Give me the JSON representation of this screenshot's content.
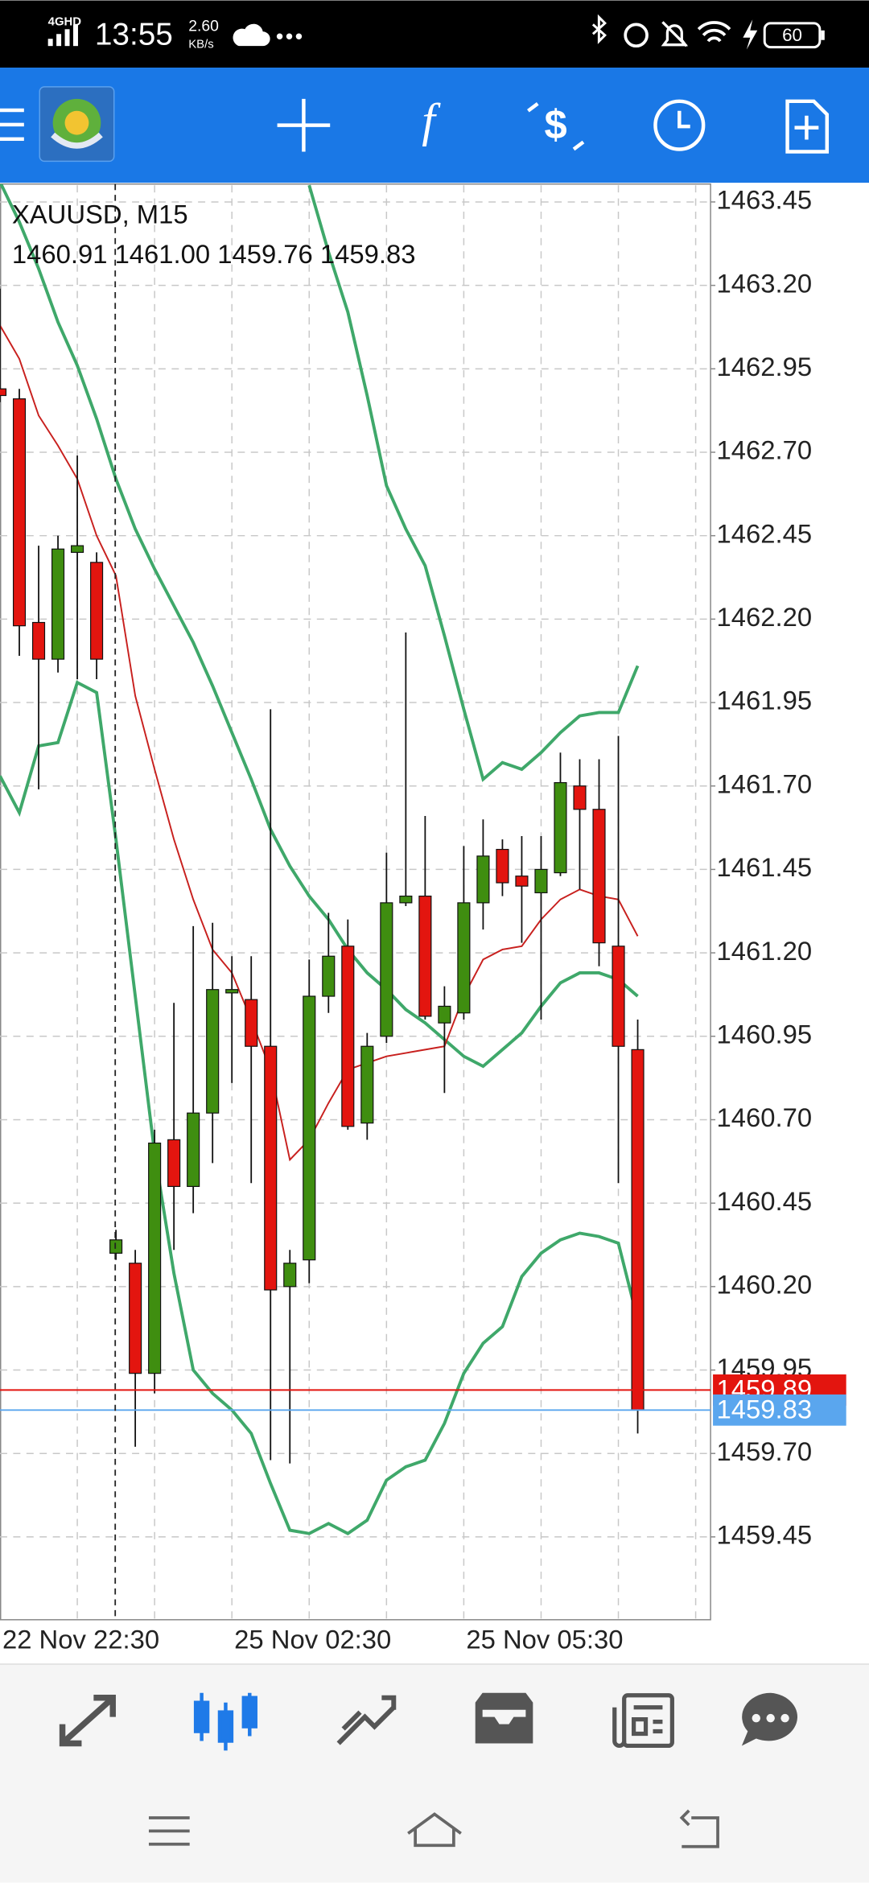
{
  "status_bar": {
    "network": "4GHD",
    "time": "13:55",
    "speed": "2.60",
    "speed_unit": "KB/s",
    "battery": "60"
  },
  "chart_data": {
    "type": "candlestick",
    "title": "XAUUSD, M15",
    "subtitle": "1460.91 1461.00 1459.76 1459.83",
    "categories": [
      "22 Nov 22:30",
      null,
      null,
      null,
      null,
      null,
      null,
      null,
      null,
      null,
      null,
      null,
      "25 Nov 02:30",
      null,
      null,
      null,
      null,
      null,
      null,
      null,
      null,
      null,
      null,
      null,
      "25 Nov 05:30",
      null,
      null,
      null,
      null,
      null,
      null,
      null,
      null,
      null
    ],
    "open": [
      1462.89,
      1462.86,
      1462.19,
      1462.08,
      1462.4,
      1462.37,
      1460.3,
      1460.27,
      1459.94,
      1460.64,
      1460.5,
      1460.72,
      1461.08,
      1461.06,
      1460.92,
      1460.2,
      1460.28,
      1461.07,
      1461.22,
      1460.69,
      1460.95,
      1461.35,
      1461.37,
      1460.99,
      1461.02,
      1461.35,
      1461.51,
      1461.43,
      1461.38,
      1461.44,
      1461.7,
      1461.63,
      1461.22,
      1460.91
    ],
    "high": [
      1463.19,
      1462.89,
      1462.42,
      1462.45,
      1462.69,
      1462.4,
      1460.37,
      1460.31,
      1460.67,
      1461.05,
      1461.28,
      1461.29,
      1461.19,
      1461.19,
      1461.93,
      1460.31,
      1461.18,
      1461.32,
      1461.3,
      1460.96,
      1461.5,
      1462.16,
      1461.61,
      1461.1,
      1461.52,
      1461.6,
      1461.54,
      1461.55,
      1461.55,
      1461.8,
      1461.78,
      1461.78,
      1461.85,
      1461.0
    ],
    "low": [
      1462.85,
      1462.09,
      1461.69,
      1462.04,
      1462.02,
      1462.02,
      1460.28,
      1459.72,
      1459.88,
      1460.31,
      1460.42,
      1460.57,
      1460.81,
      1460.51,
      1459.68,
      1459.67,
      1460.21,
      1461.02,
      1460.67,
      1460.64,
      1460.93,
      1461.34,
      1461.0,
      1460.78,
      1461.0,
      1461.27,
      1461.37,
      1461.23,
      1461.0,
      1461.43,
      1461.39,
      1461.16,
      1460.51,
      1459.76
    ],
    "close": [
      1462.87,
      1462.18,
      1462.08,
      1462.41,
      1462.42,
      1462.08,
      1460.34,
      1459.94,
      1460.63,
      1460.5,
      1460.72,
      1461.09,
      1461.09,
      1460.92,
      1460.19,
      1460.27,
      1461.07,
      1461.19,
      1460.68,
      1460.92,
      1461.35,
      1461.37,
      1461.01,
      1461.04,
      1461.35,
      1461.49,
      1461.41,
      1461.4,
      1461.45,
      1461.71,
      1461.63,
      1461.23,
      1460.92,
      1459.83
    ],
    "up_color": "#3f8e10",
    "down_color": "#e3150f",
    "series": [
      {
        "color": "#3fa86a",
        "values": [
          1463.51,
          1463.39,
          1463.25,
          1463.09,
          1462.96,
          1462.8,
          1462.62,
          1462.47,
          1462.35,
          1462.24,
          1462.13,
          1462.0,
          1461.86,
          1461.72,
          1461.57,
          1461.46,
          1461.37,
          1461.3,
          1461.21,
          1461.14,
          1461.09,
          1461.03,
          1460.99,
          1460.94,
          1460.89,
          1460.86,
          1460.91,
          1460.96,
          1461.04,
          1461.11,
          1461.14,
          1461.14,
          1461.12,
          1461.07
        ]
      },
      {
        "color": "#3fa86a",
        "values": [
          1461.73,
          1461.62,
          1461.82,
          1461.83,
          1462.01,
          1461.98,
          1461.54,
          1461.07,
          1460.6,
          1460.24,
          1459.95,
          1459.88,
          1459.83,
          1459.76,
          1459.61,
          1459.47,
          1459.46,
          1459.49,
          1459.46,
          1459.5,
          1459.62,
          1459.66,
          1459.68,
          1459.79,
          1459.94,
          1460.03,
          1460.08,
          1460.23,
          1460.3,
          1460.34,
          1460.36,
          1460.35,
          1460.33,
          1460.1
        ]
      },
      {
        "color": "#3fa86a",
        "values": [
          null,
          null,
          null,
          null,
          null,
          null,
          null,
          null,
          null,
          null,
          null,
          null,
          null,
          null,
          null,
          null,
          1463.5,
          1463.3,
          1463.12,
          1462.87,
          1462.6,
          1462.47,
          1462.36,
          1462.15,
          1461.93,
          1461.72,
          1461.77,
          1461.75,
          1461.8,
          1461.86,
          1461.91,
          1461.92,
          1461.92,
          1462.06
        ]
      },
      {
        "color": "#c8201e",
        "values": [
          1463.08,
          1462.98,
          1462.81,
          1462.72,
          1462.62,
          1462.45,
          1462.33,
          1461.97,
          1461.75,
          1461.54,
          1461.36,
          1461.21,
          1461.14,
          1461.0,
          1460.85,
          1460.58,
          1460.64,
          1460.75,
          1460.85,
          1460.87,
          1460.89,
          1460.9,
          1460.91,
          1460.92,
          1461.07,
          1461.18,
          1461.21,
          1461.22,
          1461.3,
          1461.36,
          1461.39,
          1461.37,
          1461.36,
          1461.25
        ]
      }
    ],
    "price_lines": [
      {
        "value": 1459.89,
        "color": "#e3150f"
      },
      {
        "value": 1459.83,
        "color": "#5aa6ee"
      }
    ],
    "ylim": [
      1459.2,
      1463.5
    ],
    "yticks": [
      1463.45,
      {
        "value": 1463.2,
        "label": "1463.20"
      },
      1462.95,
      {
        "value": 1462.7,
        "label": "1462.70"
      },
      1462.45,
      {
        "value": 1462.2,
        "label": "1462.20"
      },
      1461.95,
      {
        "value": 1461.7,
        "label": "1461.70"
      },
      1461.45,
      {
        "value": 1461.2,
        "label": "1461.20"
      },
      1460.95,
      {
        "value": 1460.7,
        "label": "1460.70"
      },
      1460.45,
      {
        "value": 1460.2,
        "label": "1460.20"
      },
      1459.95,
      {
        "value": 1459.7,
        "label": "1459.70"
      },
      1459.45
    ],
    "grid": true
  }
}
